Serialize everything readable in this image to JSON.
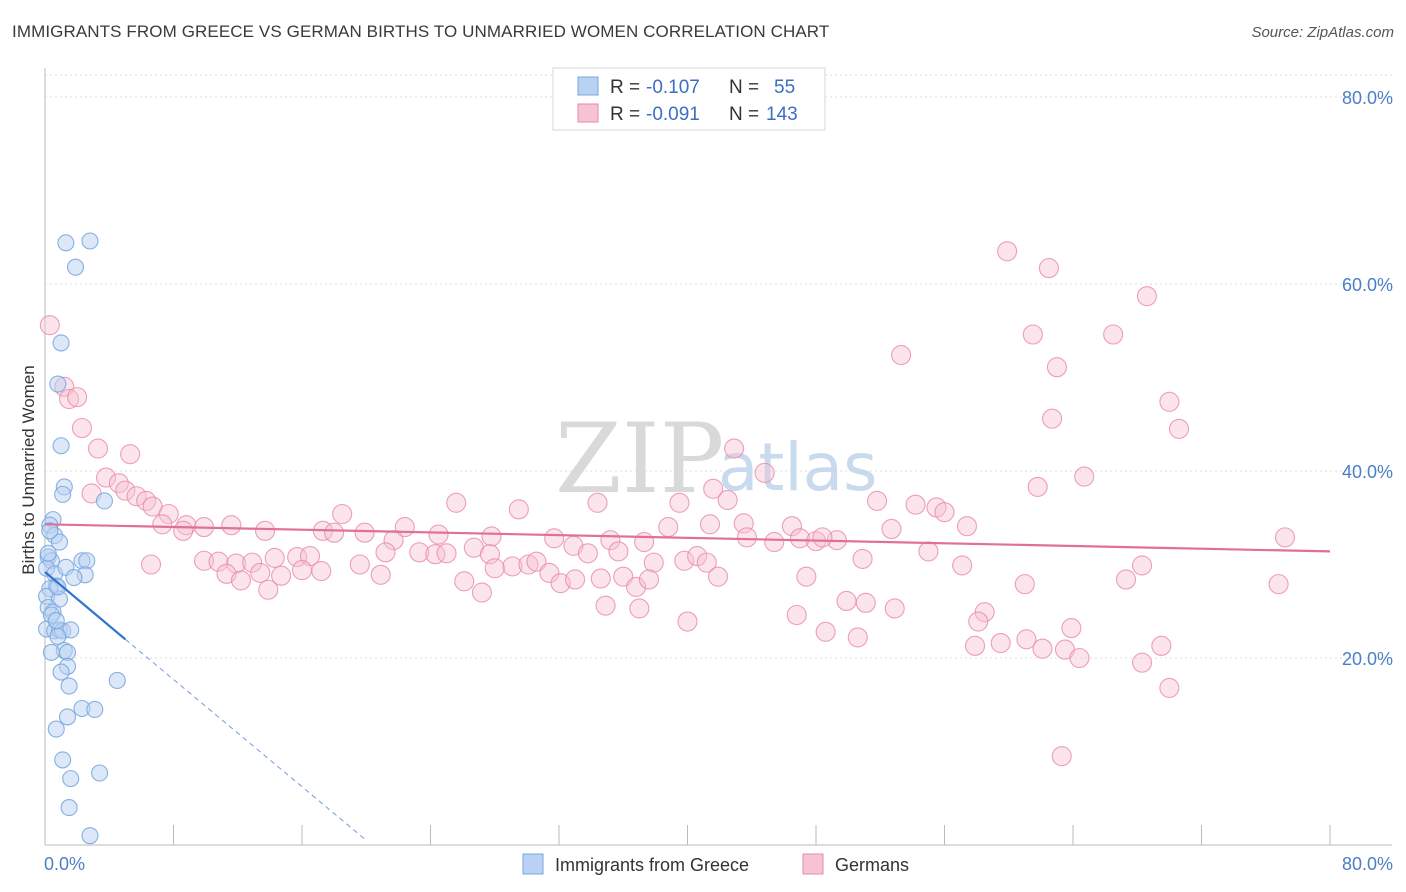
{
  "title": "IMMIGRANTS FROM GREECE VS GERMAN BIRTHS TO UNMARRIED WOMEN CORRELATION CHART",
  "source": "Source: ZipAtlas.com",
  "watermark": {
    "zip": "ZIP",
    "atlas": "atlas"
  },
  "colors": {
    "blue": "#7aa7e0",
    "blue_fill": "#b9d1f2",
    "blue_line": "#2f74d0",
    "pink": "#e88aa8",
    "pink_fill": "#f6c3d3",
    "pink_line": "#e0709a",
    "tick_text": "#4a7fc8"
  },
  "legend": {
    "r_label": "R =",
    "n_label": "N =",
    "series": [
      {
        "r": "-0.107",
        "n": "55"
      },
      {
        "r": "-0.091",
        "n": "143"
      }
    ]
  },
  "chart_data": {
    "type": "scatter",
    "title": "IMMIGRANTS FROM GREECE VS GERMAN BIRTHS TO UNMARRIED WOMEN CORRELATION CHART",
    "xlabel": "",
    "ylabel": "Births to Unmarried Women",
    "xlim": [
      0,
      80
    ],
    "ylim": [
      0,
      82
    ],
    "x_tick_labels": [
      "0.0%",
      "80.0%"
    ],
    "y_ticks": [
      20,
      40,
      60,
      80
    ],
    "y_tick_labels": [
      "20.0%",
      "40.0%",
      "60.0%",
      "80.0%"
    ],
    "grid": true,
    "legend_position": "top-center",
    "series": [
      {
        "name": "Immigrants from Greece",
        "r": -0.107,
        "n": 55,
        "trend": {
          "x0": 0,
          "y0": 29.2,
          "x1": 5.0,
          "y1": 22.0,
          "dash_to_x": 20,
          "dash_to_y": 0.5
        },
        "points": [
          [
            1.3,
            64.4
          ],
          [
            2.8,
            64.6
          ],
          [
            1.9,
            61.8
          ],
          [
            1.0,
            53.7
          ],
          [
            0.8,
            49.3
          ],
          [
            1.0,
            42.7
          ],
          [
            1.2,
            38.3
          ],
          [
            1.1,
            37.5
          ],
          [
            3.7,
            36.8
          ],
          [
            0.5,
            34.8
          ],
          [
            0.3,
            34.2
          ],
          [
            0.6,
            33.1
          ],
          [
            0.9,
            32.4
          ],
          [
            0.2,
            30.8
          ],
          [
            0.4,
            30.4
          ],
          [
            0.1,
            29.6
          ],
          [
            0.6,
            29.0
          ],
          [
            1.3,
            29.7
          ],
          [
            2.3,
            30.4
          ],
          [
            2.6,
            30.4
          ],
          [
            2.5,
            28.9
          ],
          [
            1.8,
            28.6
          ],
          [
            0.7,
            27.7
          ],
          [
            0.3,
            27.4
          ],
          [
            0.1,
            26.6
          ],
          [
            0.9,
            26.3
          ],
          [
            0.2,
            25.4
          ],
          [
            0.5,
            24.9
          ],
          [
            0.4,
            24.6
          ],
          [
            0.1,
            23.1
          ],
          [
            0.6,
            22.9
          ],
          [
            0.9,
            23.0
          ],
          [
            1.1,
            22.9
          ],
          [
            1.6,
            23.0
          ],
          [
            0.8,
            22.3
          ],
          [
            1.2,
            20.8
          ],
          [
            1.4,
            20.6
          ],
          [
            1.4,
            19.1
          ],
          [
            1.0,
            18.5
          ],
          [
            4.5,
            17.6
          ],
          [
            1.5,
            17.0
          ],
          [
            2.3,
            14.6
          ],
          [
            3.1,
            14.5
          ],
          [
            1.4,
            13.7
          ],
          [
            0.7,
            12.4
          ],
          [
            1.1,
            9.1
          ],
          [
            1.6,
            7.1
          ],
          [
            3.4,
            7.7
          ],
          [
            1.5,
            4.0
          ],
          [
            2.8,
            1.0
          ],
          [
            0.4,
            20.6
          ],
          [
            0.8,
            27.6
          ],
          [
            0.2,
            31.2
          ],
          [
            0.3,
            33.6
          ],
          [
            0.7,
            24.0
          ]
        ]
      },
      {
        "name": "Germans",
        "r": -0.091,
        "n": 143,
        "trend": {
          "x0": 0,
          "y0": 34.3,
          "x1": 80,
          "y1": 31.4
        },
        "points": [
          [
            0.3,
            55.6
          ],
          [
            1.2,
            49.0
          ],
          [
            1.5,
            47.7
          ],
          [
            2.0,
            47.9
          ],
          [
            2.3,
            44.6
          ],
          [
            3.3,
            42.4
          ],
          [
            5.3,
            41.8
          ],
          [
            3.8,
            39.3
          ],
          [
            4.6,
            38.7
          ],
          [
            5.0,
            37.9
          ],
          [
            2.9,
            37.6
          ],
          [
            5.7,
            37.3
          ],
          [
            6.3,
            36.8
          ],
          [
            6.7,
            36.2
          ],
          [
            7.7,
            35.4
          ],
          [
            7.3,
            34.3
          ],
          [
            8.8,
            34.2
          ],
          [
            9.9,
            34.0
          ],
          [
            8.6,
            33.6
          ],
          [
            13.7,
            33.6
          ],
          [
            17.3,
            33.6
          ],
          [
            18.0,
            33.4
          ],
          [
            22.4,
            34.0
          ],
          [
            11.6,
            34.2
          ],
          [
            18.5,
            35.4
          ],
          [
            25.6,
            36.6
          ],
          [
            29.5,
            35.9
          ],
          [
            34.4,
            36.6
          ],
          [
            39.5,
            36.6
          ],
          [
            41.6,
            38.1
          ],
          [
            44.8,
            39.8
          ],
          [
            42.9,
            42.4
          ],
          [
            51.8,
            36.8
          ],
          [
            54.2,
            36.4
          ],
          [
            55.5,
            36.1
          ],
          [
            56.0,
            35.6
          ],
          [
            57.4,
            34.1
          ],
          [
            42.5,
            36.9
          ],
          [
            43.5,
            34.4
          ],
          [
            38.8,
            34.0
          ],
          [
            46.5,
            34.1
          ],
          [
            52.7,
            33.8
          ],
          [
            43.7,
            32.9
          ],
          [
            45.4,
            32.4
          ],
          [
            47.0,
            32.8
          ],
          [
            48.0,
            32.5
          ],
          [
            49.3,
            32.6
          ],
          [
            19.9,
            33.4
          ],
          [
            21.7,
            32.6
          ],
          [
            24.5,
            33.2
          ],
          [
            27.8,
            33.0
          ],
          [
            31.7,
            32.8
          ],
          [
            35.2,
            32.6
          ],
          [
            37.3,
            32.4
          ],
          [
            41.4,
            34.3
          ],
          [
            6.6,
            30.0
          ],
          [
            9.9,
            30.4
          ],
          [
            10.8,
            30.3
          ],
          [
            11.9,
            30.1
          ],
          [
            12.9,
            30.2
          ],
          [
            14.3,
            30.7
          ],
          [
            15.7,
            30.8
          ],
          [
            16.5,
            30.9
          ],
          [
            19.6,
            30.0
          ],
          [
            21.2,
            31.3
          ],
          [
            23.3,
            31.3
          ],
          [
            24.3,
            31.1
          ],
          [
            25.0,
            31.2
          ],
          [
            26.7,
            31.8
          ],
          [
            27.7,
            31.1
          ],
          [
            29.1,
            29.8
          ],
          [
            30.1,
            30.0
          ],
          [
            30.6,
            30.3
          ],
          [
            32.9,
            32.0
          ],
          [
            33.8,
            31.2
          ],
          [
            35.7,
            31.4
          ],
          [
            37.9,
            30.2
          ],
          [
            39.8,
            30.4
          ],
          [
            40.6,
            30.9
          ],
          [
            41.2,
            30.2
          ],
          [
            48.4,
            32.9
          ],
          [
            50.9,
            30.6
          ],
          [
            55.0,
            31.4
          ],
          [
            57.1,
            29.9
          ],
          [
            11.3,
            29.0
          ],
          [
            13.4,
            29.1
          ],
          [
            14.7,
            28.8
          ],
          [
            16.0,
            29.4
          ],
          [
            17.2,
            29.3
          ],
          [
            20.9,
            28.9
          ],
          [
            26.1,
            28.2
          ],
          [
            28.0,
            29.6
          ],
          [
            31.4,
            29.1
          ],
          [
            32.1,
            28.0
          ],
          [
            33.0,
            28.4
          ],
          [
            34.6,
            28.5
          ],
          [
            36.0,
            28.7
          ],
          [
            36.8,
            27.6
          ],
          [
            37.6,
            28.4
          ],
          [
            41.9,
            28.7
          ],
          [
            47.4,
            28.7
          ],
          [
            61.0,
            27.9
          ],
          [
            67.3,
            28.4
          ],
          [
            68.3,
            29.9
          ],
          [
            76.8,
            27.9
          ],
          [
            12.2,
            28.3
          ],
          [
            13.9,
            27.3
          ],
          [
            27.2,
            27.0
          ],
          [
            34.9,
            25.6
          ],
          [
            37.0,
            25.3
          ],
          [
            49.9,
            26.1
          ],
          [
            51.1,
            25.9
          ],
          [
            52.9,
            25.3
          ],
          [
            58.5,
            24.9
          ],
          [
            40.0,
            23.9
          ],
          [
            46.8,
            24.6
          ],
          [
            48.6,
            22.8
          ],
          [
            50.6,
            22.2
          ],
          [
            58.1,
            23.9
          ],
          [
            57.9,
            21.3
          ],
          [
            59.5,
            21.6
          ],
          [
            61.1,
            22.0
          ],
          [
            62.1,
            21.0
          ],
          [
            63.9,
            23.2
          ],
          [
            63.5,
            20.9
          ],
          [
            64.4,
            20.0
          ],
          [
            68.3,
            19.5
          ],
          [
            69.5,
            21.3
          ],
          [
            70.0,
            16.8
          ],
          [
            63.3,
            9.5
          ],
          [
            53.3,
            52.4
          ],
          [
            59.9,
            63.5
          ],
          [
            62.5,
            61.7
          ],
          [
            61.5,
            54.6
          ],
          [
            63.0,
            51.1
          ],
          [
            66.5,
            54.6
          ],
          [
            68.6,
            58.7
          ],
          [
            70.0,
            47.4
          ],
          [
            70.6,
            44.5
          ],
          [
            62.7,
            45.6
          ],
          [
            64.7,
            39.4
          ],
          [
            61.8,
            38.3
          ],
          [
            77.2,
            32.9
          ]
        ]
      }
    ]
  },
  "bottom_legend": [
    "Immigrants from Greece",
    "Germans"
  ]
}
